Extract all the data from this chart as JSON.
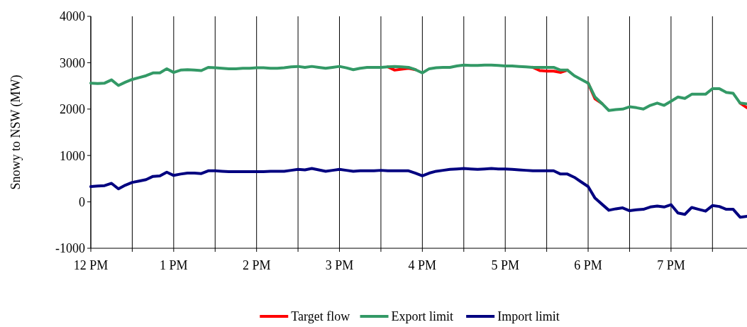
{
  "chart_data": {
    "type": "line",
    "ylabel": "Snowy to NSW (MW)",
    "categories": [
      "12 PM",
      null,
      null,
      null,
      null,
      null,
      null,
      null,
      null,
      null,
      null,
      null,
      "1 PM",
      null,
      null,
      null,
      null,
      null,
      null,
      null,
      null,
      null,
      null,
      null,
      "2 PM",
      null,
      null,
      null,
      null,
      null,
      null,
      null,
      null,
      null,
      null,
      null,
      "3 PM",
      null,
      null,
      null,
      null,
      null,
      null,
      null,
      null,
      null,
      null,
      null,
      "4 PM",
      null,
      null,
      null,
      null,
      null,
      null,
      null,
      null,
      null,
      null,
      null,
      "5 PM",
      null,
      null,
      null,
      null,
      null,
      null,
      null,
      null,
      null,
      null,
      null,
      "6 PM",
      null,
      null,
      null,
      null,
      null,
      null,
      null,
      null,
      null,
      null,
      null,
      "7 PM",
      null,
      null,
      null,
      null,
      null,
      null,
      null,
      null,
      null,
      null,
      null
    ],
    "series": [
      {
        "name": "Target flow",
        "color": "#ff0000",
        "values": [
          null,
          null,
          null,
          null,
          null,
          null,
          null,
          null,
          null,
          null,
          null,
          null,
          null,
          null,
          null,
          null,
          null,
          null,
          null,
          null,
          null,
          null,
          null,
          null,
          null,
          null,
          null,
          null,
          null,
          null,
          null,
          null,
          null,
          null,
          null,
          null,
          null,
          null,
          null,
          null,
          null,
          null,
          null,
          2910,
          2840,
          2860,
          2880,
          2850,
          null,
          null,
          null,
          null,
          null,
          null,
          null,
          null,
          null,
          null,
          null,
          null,
          null,
          null,
          null,
          null,
          2900,
          2830,
          2820,
          2820,
          2790,
          2840,
          null,
          null,
          2560,
          2220,
          2120,
          null,
          null,
          null,
          null,
          null,
          null,
          null,
          null,
          null,
          null,
          null,
          null,
          null,
          null,
          null,
          null,
          null,
          null,
          null,
          2130,
          2030
        ]
      },
      {
        "name": "Export limit",
        "color": "#339966",
        "values": [
          2560,
          2550,
          2560,
          2630,
          2510,
          2580,
          2640,
          2680,
          2720,
          2780,
          2780,
          2870,
          2790,
          2840,
          2850,
          2840,
          2830,
          2900,
          2890,
          2880,
          2870,
          2870,
          2880,
          2880,
          2890,
          2890,
          2880,
          2880,
          2890,
          2910,
          2920,
          2900,
          2920,
          2900,
          2880,
          2900,
          2920,
          2890,
          2850,
          2880,
          2900,
          2900,
          2900,
          2910,
          2920,
          2910,
          2900,
          2850,
          2780,
          2870,
          2890,
          2900,
          2900,
          2930,
          2950,
          2940,
          2940,
          2950,
          2950,
          2940,
          2930,
          2930,
          2920,
          2910,
          2900,
          2900,
          2900,
          2900,
          2840,
          2840,
          2720,
          2640,
          2560,
          2260,
          2120,
          1970,
          1990,
          2000,
          2050,
          2030,
          2000,
          2080,
          2130,
          2080,
          2170,
          2260,
          2230,
          2320,
          2320,
          2320,
          2440,
          2440,
          2360,
          2340,
          2130,
          2110
        ]
      },
      {
        "name": "Import limit",
        "color": "#000080",
        "values": [
          330,
          340,
          350,
          400,
          280,
          360,
          420,
          450,
          480,
          550,
          560,
          640,
          570,
          600,
          620,
          620,
          610,
          670,
          670,
          660,
          650,
          650,
          650,
          650,
          650,
          650,
          660,
          660,
          660,
          680,
          700,
          690,
          720,
          690,
          660,
          680,
          700,
          680,
          660,
          670,
          670,
          670,
          680,
          670,
          670,
          670,
          670,
          620,
          560,
          620,
          660,
          680,
          700,
          710,
          720,
          710,
          700,
          710,
          720,
          710,
          710,
          700,
          690,
          680,
          670,
          670,
          670,
          670,
          600,
          600,
          530,
          430,
          330,
          80,
          -50,
          -180,
          -150,
          -130,
          -190,
          -170,
          -160,
          -110,
          -90,
          -110,
          -60,
          -240,
          -270,
          -120,
          -160,
          -200,
          -80,
          -100,
          -160,
          -160,
          -330,
          -310
        ]
      }
    ],
    "ylim": [
      -1000,
      4000
    ],
    "yticks": [
      -1000,
      0,
      1000,
      2000,
      3000,
      4000
    ],
    "grid": "x",
    "legend": "bottom",
    "marker": "none",
    "line_style": "solid"
  }
}
